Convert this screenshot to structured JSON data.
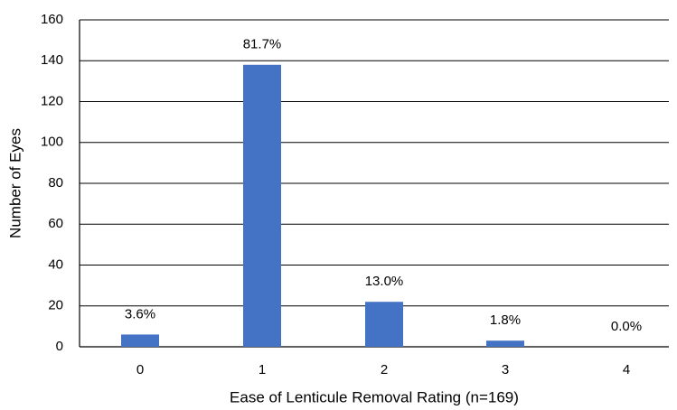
{
  "chart_data": {
    "type": "bar",
    "x_label": "Ease of Lenticule Removal Rating (n=169)",
    "y_label": "Number of Eyes",
    "categories": [
      "0",
      "1",
      "2",
      "3",
      "4"
    ],
    "values": [
      6,
      138,
      22,
      3,
      0
    ],
    "value_labels": [
      "3.6%",
      "81.7%",
      "13.0%",
      "1.8%",
      "0.0%"
    ],
    "color": "#4472c4",
    "ylim": [
      0,
      160
    ],
    "yticks": [
      0,
      20,
      40,
      60,
      80,
      100,
      120,
      140,
      160
    ],
    "grid": true
  }
}
